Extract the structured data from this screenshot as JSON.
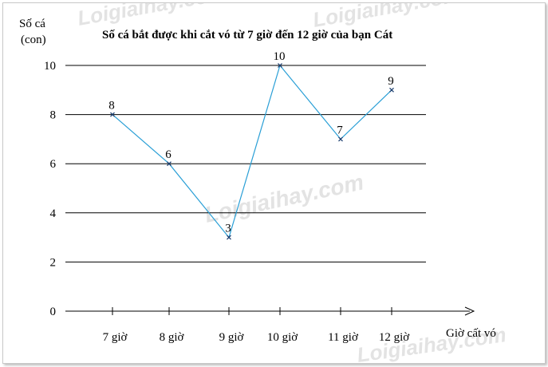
{
  "chart_data": {
    "type": "line",
    "title": "Số cá bắt được khi cắt vó từ 7 giờ đến 12 giờ của bạn Cát",
    "ylabel_line1": "Số cá",
    "ylabel_line2": "(con)",
    "xlabel": "Giờ cất vó",
    "categories": [
      "7 giờ",
      "8 giờ",
      "9 giờ",
      "10 giờ",
      "11 giờ",
      "12 giờ"
    ],
    "values": [
      8,
      6,
      3,
      10,
      7,
      9
    ],
    "yticks": [
      0,
      2,
      4,
      6,
      8,
      10
    ],
    "ylim": [
      0,
      10
    ],
    "grid": true,
    "line_color": "#2a9fd6",
    "watermark": "Loigiaihay.com"
  }
}
